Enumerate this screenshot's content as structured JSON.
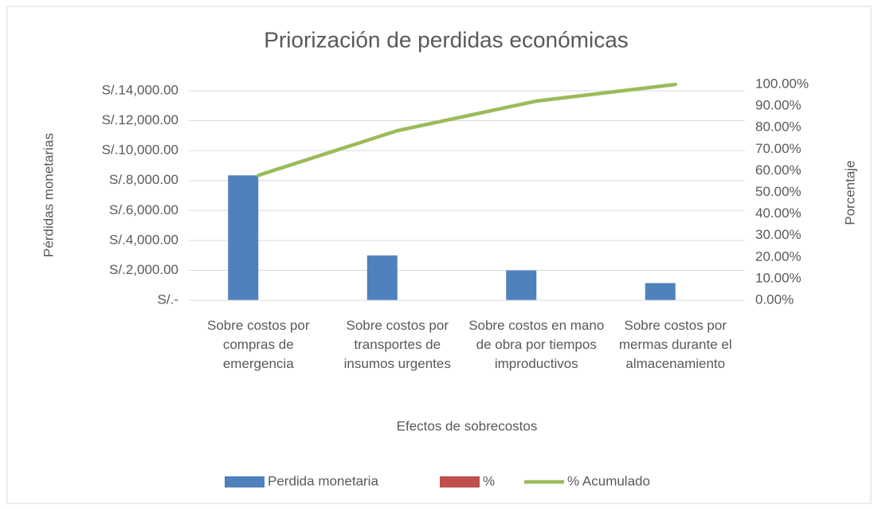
{
  "chart_data": {
    "type": "pareto",
    "title": "Priorización de perdidas económicas",
    "x_label": "Efectos de sobrecostos",
    "y_label": "Pérdidas monetarias",
    "y2_label": "Porcentaje",
    "categories": [
      "Sobre costos por compras de emergencia",
      "Sobre costos por transportes de insumos urgentes",
      "Sobre costos en mano de obra por tiempos improductivos",
      "Sobre costos por mermas durante el almacenamiento"
    ],
    "series": [
      {
        "name": "Perdida monetaria",
        "color": "#4f81bd",
        "kind": "bar",
        "values": [
          8350,
          3000,
          2000,
          1150
        ]
      },
      {
        "name": "%",
        "color": "#c0504d",
        "kind": "bar",
        "values": [
          0.58,
          0.21,
          0.14,
          0.08
        ]
      },
      {
        "name": "% Acumulado",
        "color": "#9bbb59",
        "kind": "line",
        "axis": "y2",
        "values": [
          57.9,
          78.6,
          92.3,
          100
        ]
      }
    ],
    "ylim": [
      0,
      14425
    ],
    "yticks": [
      {
        "value": 0,
        "label": "S/.-"
      },
      {
        "value": 2000,
        "label": "S/.2,000.00"
      },
      {
        "value": 4000,
        "label": "S/.4,000.00"
      },
      {
        "value": 6000,
        "label": "S/.6,000.00"
      },
      {
        "value": 8000,
        "label": "S/.8,000.00"
      },
      {
        "value": 10000,
        "label": "S/.10,000.00"
      },
      {
        "value": 12000,
        "label": "S/.12,000.00"
      },
      {
        "value": 14000,
        "label": "S/.14,000.00"
      }
    ],
    "y2lim": [
      0,
      100
    ],
    "y2ticks": [
      {
        "value": 0,
        "label": "0.00%"
      },
      {
        "value": 10,
        "label": "10.00%"
      },
      {
        "value": 20,
        "label": "20.00%"
      },
      {
        "value": 30,
        "label": "30.00%"
      },
      {
        "value": 40,
        "label": "40.00%"
      },
      {
        "value": 50,
        "label": "50.00%"
      },
      {
        "value": 60,
        "label": "60.00%"
      },
      {
        "value": 70,
        "label": "70.00%"
      },
      {
        "value": 80,
        "label": "80.00%"
      },
      {
        "value": 90,
        "label": "90.00%"
      },
      {
        "value": 100,
        "label": "100.00%"
      }
    ],
    "grid": true,
    "legend": "bottom"
  }
}
